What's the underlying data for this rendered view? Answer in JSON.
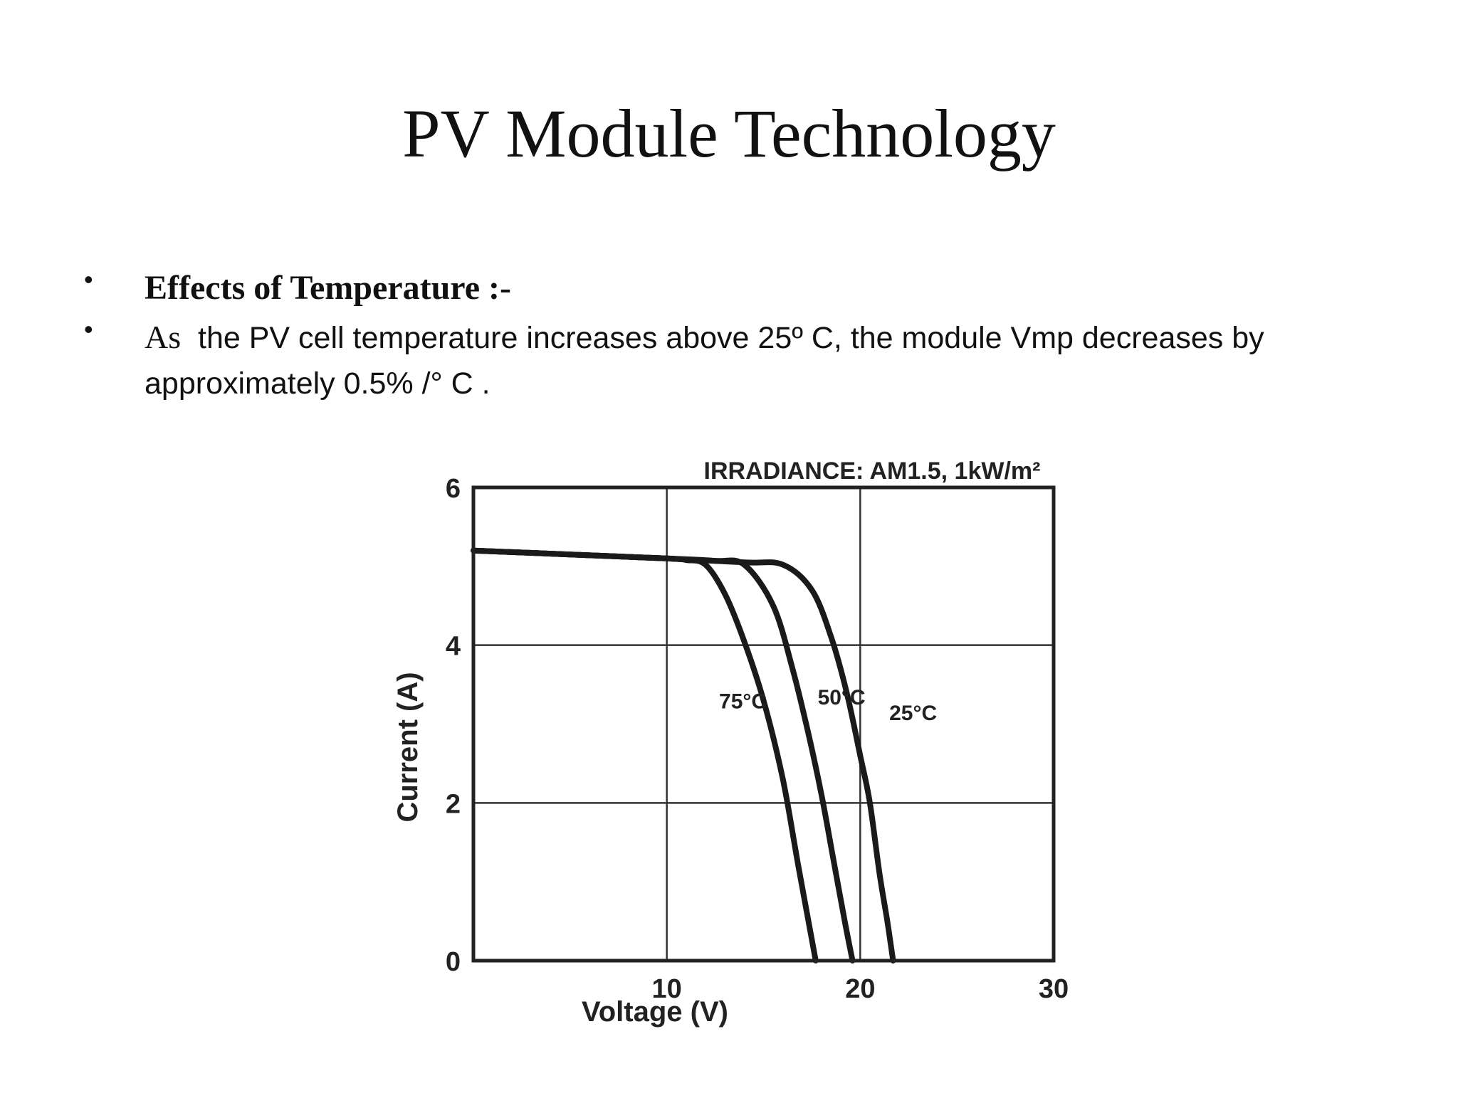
{
  "slide": {
    "title": "PV Module Technology",
    "bullets": [
      {
        "text": "Effects of Temperature :-"
      },
      {
        "lead": "As",
        "text": "the PV cell temperature increases above 25º C, the module Vmp decreases by approximately 0.5% /° C ."
      }
    ]
  },
  "chart_data": {
    "type": "line",
    "title": "IRRADIANCE: AM1.5, 1kW/m²",
    "xlabel": "Voltage (V)",
    "ylabel": "Current (A)",
    "xlim": [
      0,
      30
    ],
    "ylim": [
      0,
      6
    ],
    "xticks": [
      "10",
      "20",
      "30"
    ],
    "yticks": [
      "0",
      "2",
      "4",
      "6"
    ],
    "grid": true,
    "line_color": "#1a1a1a",
    "series": [
      {
        "name": "25°C",
        "x": [
          0,
          5,
          10,
          14,
          16,
          17.5,
          18.5,
          19.3,
          20.0,
          20.5,
          21.0,
          21.4,
          21.7
        ],
        "y": [
          5.2,
          5.15,
          5.1,
          5.05,
          5.02,
          4.7,
          4.1,
          3.4,
          2.6,
          2.0,
          1.1,
          0.5,
          0
        ]
      },
      {
        "name": "50°C",
        "x": [
          0,
          5,
          10,
          12.5,
          14,
          15.5,
          16.5,
          17.3,
          18.0,
          18.6,
          19.2,
          19.6
        ],
        "y": [
          5.2,
          5.15,
          5.1,
          5.07,
          5.02,
          4.5,
          3.7,
          2.9,
          2.1,
          1.3,
          0.5,
          0
        ]
      },
      {
        "name": "75°C",
        "x": [
          0,
          5,
          10,
          11,
          12,
          13,
          14,
          15,
          16,
          16.8,
          17.7
        ],
        "y": [
          5.2,
          5.15,
          5.1,
          5.08,
          5.02,
          4.65,
          4.05,
          3.3,
          2.3,
          1.2,
          0
        ]
      }
    ]
  }
}
